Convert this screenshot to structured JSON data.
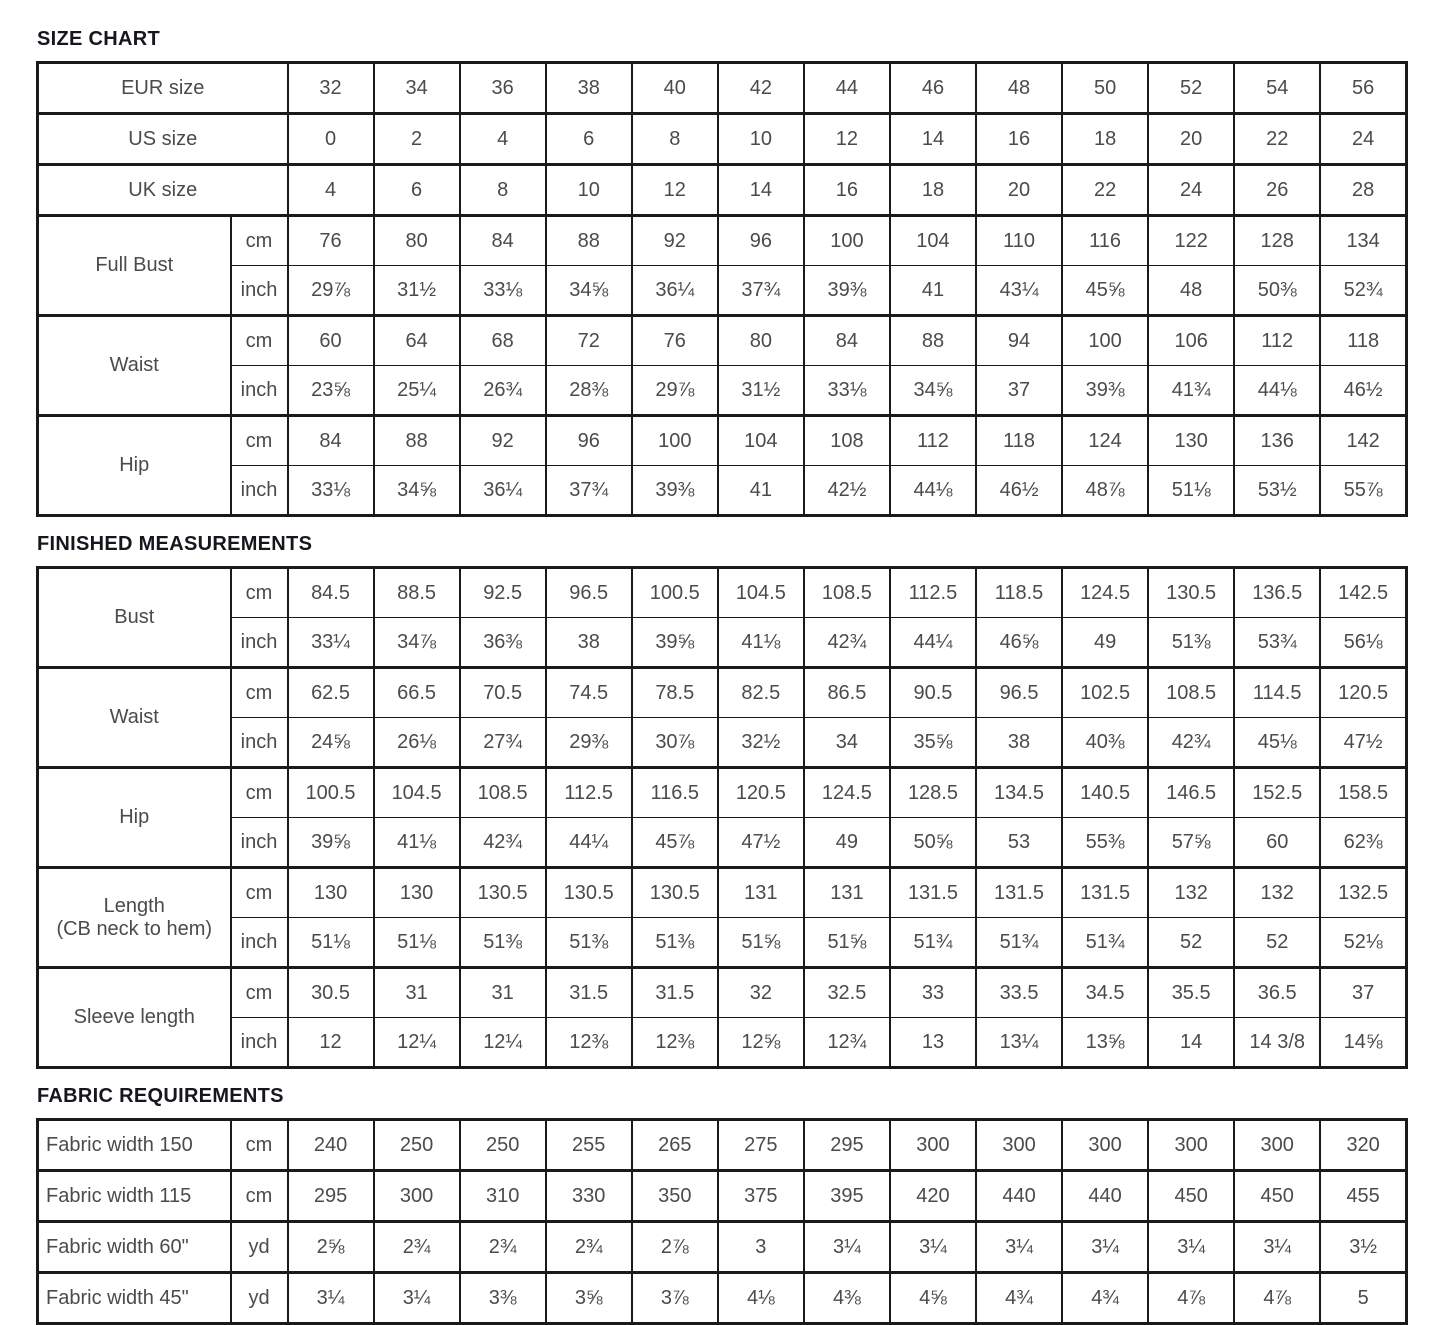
{
  "page": {
    "colors": {
      "background": "#ffffff",
      "heading": "#16161e",
      "cell_text": "#4b4b4b",
      "border": "#1a1a1a"
    }
  },
  "sections": [
    {
      "title": "SIZE CHART",
      "groups": [
        {
          "label": "EUR size",
          "rows": [
            {
              "unit": "",
              "values": [
                "32",
                "34",
                "36",
                "38",
                "40",
                "42",
                "44",
                "46",
                "48",
                "50",
                "52",
                "54",
                "56"
              ]
            }
          ]
        },
        {
          "label": "US size",
          "rows": [
            {
              "unit": "",
              "values": [
                "0",
                "2",
                "4",
                "6",
                "8",
                "10",
                "12",
                "14",
                "16",
                "18",
                "20",
                "22",
                "24"
              ]
            }
          ]
        },
        {
          "label": "UK size",
          "rows": [
            {
              "unit": "",
              "values": [
                "4",
                "6",
                "8",
                "10",
                "12",
                "14",
                "16",
                "18",
                "20",
                "22",
                "24",
                "26",
                "28"
              ]
            }
          ]
        },
        {
          "label": "Full Bust",
          "rows": [
            {
              "unit": "cm",
              "values": [
                "76",
                "80",
                "84",
                "88",
                "92",
                "96",
                "100",
                "104",
                "110",
                "116",
                "122",
                "128",
                "134"
              ]
            },
            {
              "unit": "inch",
              "values": [
                "29⅞",
                "31½",
                "33⅛",
                "34⅝",
                "36¼",
                "37¾",
                "39⅜",
                "41",
                "43¼",
                "45⅝",
                "48",
                "50⅜",
                "52¾"
              ]
            }
          ]
        },
        {
          "label": "Waist",
          "rows": [
            {
              "unit": "cm",
              "values": [
                "60",
                "64",
                "68",
                "72",
                "76",
                "80",
                "84",
                "88",
                "94",
                "100",
                "106",
                "112",
                "118"
              ]
            },
            {
              "unit": "inch",
              "values": [
                "23⅝",
                "25¼",
                "26¾",
                "28⅜",
                "29⅞",
                "31½",
                "33⅛",
                "34⅝",
                "37",
                "39⅜",
                "41¾",
                "44⅛",
                "46½"
              ]
            }
          ]
        },
        {
          "label": "Hip",
          "rows": [
            {
              "unit": "cm",
              "values": [
                "84",
                "88",
                "92",
                "96",
                "100",
                "104",
                "108",
                "112",
                "118",
                "124",
                "130",
                "136",
                "142"
              ]
            },
            {
              "unit": "inch",
              "values": [
                "33⅛",
                "34⅝",
                "36¼",
                "37¾",
                "39⅜",
                "41",
                "42½",
                "44⅛",
                "46½",
                "48⅞",
                "51⅛",
                "53½",
                "55⅞"
              ]
            }
          ]
        }
      ]
    },
    {
      "title": "FINISHED MEASUREMENTS",
      "groups": [
        {
          "label": "Bust",
          "rows": [
            {
              "unit": "cm",
              "values": [
                "84.5",
                "88.5",
                "92.5",
                "96.5",
                "100.5",
                "104.5",
                "108.5",
                "112.5",
                "118.5",
                "124.5",
                "130.5",
                "136.5",
                "142.5"
              ]
            },
            {
              "unit": "inch",
              "values": [
                "33¼",
                "34⅞",
                "36⅜",
                "38",
                "39⅝",
                "41⅛",
                "42¾",
                "44¼",
                "46⅝",
                "49",
                "51⅜",
                "53¾",
                "56⅛"
              ]
            }
          ]
        },
        {
          "label": "Waist",
          "rows": [
            {
              "unit": "cm",
              "values": [
                "62.5",
                "66.5",
                "70.5",
                "74.5",
                "78.5",
                "82.5",
                "86.5",
                "90.5",
                "96.5",
                "102.5",
                "108.5",
                "114.5",
                "120.5"
              ]
            },
            {
              "unit": "inch",
              "values": [
                "24⅝",
                "26⅛",
                "27¾",
                "29⅜",
                "30⅞",
                "32½",
                "34",
                "35⅝",
                "38",
                "40⅜",
                "42¾",
                "45⅛",
                "47½"
              ]
            }
          ]
        },
        {
          "label": "Hip",
          "rows": [
            {
              "unit": "cm",
              "values": [
                "100.5",
                "104.5",
                "108.5",
                "112.5",
                "116.5",
                "120.5",
                "124.5",
                "128.5",
                "134.5",
                "140.5",
                "146.5",
                "152.5",
                "158.5"
              ]
            },
            {
              "unit": "inch",
              "values": [
                "39⅝",
                "41⅛",
                "42¾",
                "44¼",
                "45⅞",
                "47½",
                "49",
                "50⅝",
                "53",
                "55⅜",
                "57⅝",
                "60",
                "62⅜"
              ]
            }
          ]
        },
        {
          "label": "Length\n(CB neck to hem)",
          "rows": [
            {
              "unit": "cm",
              "values": [
                "130",
                "130",
                "130.5",
                "130.5",
                "130.5",
                "131",
                "131",
                "131.5",
                "131.5",
                "131.5",
                "132",
                "132",
                "132.5"
              ]
            },
            {
              "unit": "inch",
              "values": [
                "51⅛",
                "51⅛",
                "51⅜",
                "51⅜",
                "51⅜",
                "51⅝",
                "51⅝",
                "51¾",
                "51¾",
                "51¾",
                "52",
                "52",
                "52⅛"
              ]
            }
          ]
        },
        {
          "label": "Sleeve length",
          "rows": [
            {
              "unit": "cm",
              "values": [
                "30.5",
                "31",
                "31",
                "31.5",
                "31.5",
                "32",
                "32.5",
                "33",
                "33.5",
                "34.5",
                "35.5",
                "36.5",
                "37"
              ]
            },
            {
              "unit": "inch",
              "values": [
                "12",
                "12¼",
                "12¼",
                "12⅜",
                "12⅜",
                "12⅝",
                "12¾",
                "13",
                "13¼",
                "13⅝",
                "14",
                "14 3/8",
                "14⅝"
              ]
            }
          ]
        }
      ]
    },
    {
      "title": "FABRIC REQUIREMENTS",
      "groups": [
        {
          "label": "Fabric width 150",
          "rows": [
            {
              "unit": "cm",
              "values": [
                "240",
                "250",
                "250",
                "255",
                "265",
                "275",
                "295",
                "300",
                "300",
                "300",
                "300",
                "300",
                "320"
              ]
            }
          ]
        },
        {
          "label": "Fabric width 115",
          "rows": [
            {
              "unit": "cm",
              "values": [
                "295",
                "300",
                "310",
                "330",
                "350",
                "375",
                "395",
                "420",
                "440",
                "440",
                "450",
                "450",
                "455"
              ]
            }
          ]
        },
        {
          "label": "Fabric width 60\"",
          "rows": [
            {
              "unit": "yd",
              "values": [
                "2⅝",
                "2¾",
                "2¾",
                "2¾",
                "2⅞",
                "3",
                "3¼",
                "3¼",
                "3¼",
                "3¼",
                "3¼",
                "3¼",
                "3½"
              ]
            }
          ]
        },
        {
          "label": "Fabric width 45\"",
          "rows": [
            {
              "unit": "yd",
              "values": [
                "3¼",
                "3¼",
                "3⅜",
                "3⅝",
                "3⅞",
                "4⅛",
                "4⅜",
                "4⅝",
                "4¾",
                "4¾",
                "4⅞",
                "4⅞",
                "5"
              ]
            }
          ]
        }
      ]
    }
  ]
}
